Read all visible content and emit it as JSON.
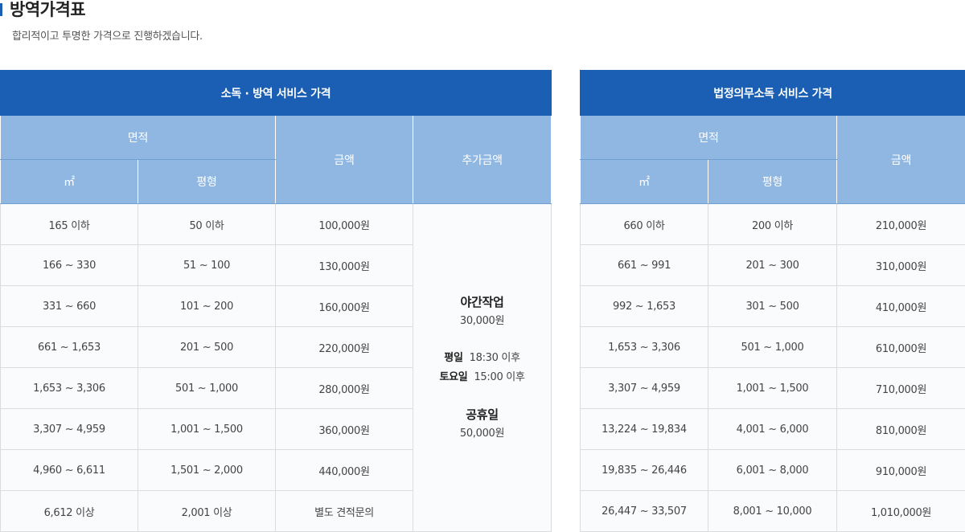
{
  "page": {
    "title": "방역가격표",
    "subtitle": "합리적이고 투명한 가격으로 진행하겠습니다."
  },
  "table1": {
    "caption": "소독 · 방역 서비스 가격",
    "area_header": "면적",
    "col_m2": "㎡",
    "col_pyeong": "평형",
    "col_price": "금액",
    "col_extra": "추가금액",
    "rows": [
      {
        "m2": "165 이하",
        "pyeong": "50 이하",
        "price": "100,000원"
      },
      {
        "m2": "166 ~ 330",
        "pyeong": "51 ~ 100",
        "price": "130,000원"
      },
      {
        "m2": "331 ~ 660",
        "pyeong": "101 ~ 200",
        "price": "160,000원"
      },
      {
        "m2": "661 ~ 1,653",
        "pyeong": "201 ~ 500",
        "price": "220,000원"
      },
      {
        "m2": "1,653 ~ 3,306",
        "pyeong": "501 ~ 1,000",
        "price": "280,000원"
      },
      {
        "m2": "3,307 ~ 4,959",
        "pyeong": "1,001 ~ 1,500",
        "price": "360,000원"
      },
      {
        "m2": "4,960 ~ 6,611",
        "pyeong": "1,501 ~ 2,000",
        "price": "440,000원"
      },
      {
        "m2": "6,612 이상",
        "pyeong": "2,001 이상",
        "price": "별도 견적문의"
      }
    ],
    "extra": {
      "night_title": "야간작업",
      "night_price": "30,000원",
      "weekday_label": "평일",
      "weekday_time": "18:30 이후",
      "saturday_label": "토요일",
      "saturday_time": "15:00 이후",
      "holiday_title": "공휴일",
      "holiday_price": "50,000원"
    }
  },
  "table2": {
    "caption": "법정의무소독 서비스 가격",
    "area_header": "면적",
    "col_m2": "㎡",
    "col_pyeong": "평형",
    "col_price": "금액",
    "rows": [
      {
        "m2": "660 이하",
        "pyeong": "200 이하",
        "price": "210,000원"
      },
      {
        "m2": "661 ~ 991",
        "pyeong": "201 ~ 300",
        "price": "310,000원"
      },
      {
        "m2": "992 ~ 1,653",
        "pyeong": "301 ~ 500",
        "price": "410,000원"
      },
      {
        "m2": "1,653 ~ 3,306",
        "pyeong": "501 ~ 1,000",
        "price": "610,000원"
      },
      {
        "m2": "3,307 ~ 4,959",
        "pyeong": "1,001 ~ 1,500",
        "price": "710,000원"
      },
      {
        "m2": "13,224 ~ 19,834",
        "pyeong": "4,001 ~ 6,000",
        "price": "810,000원"
      },
      {
        "m2": "19,835 ~ 26,446",
        "pyeong": "6,001 ~ 8,000",
        "price": "910,000원"
      },
      {
        "m2": "26,447 ~ 33,507",
        "pyeong": "8,001 ~ 10,000",
        "price": "1,010,000원"
      }
    ]
  },
  "colors": {
    "header_dark": "#1a5fb4",
    "header_light": "#8fb7e2"
  }
}
